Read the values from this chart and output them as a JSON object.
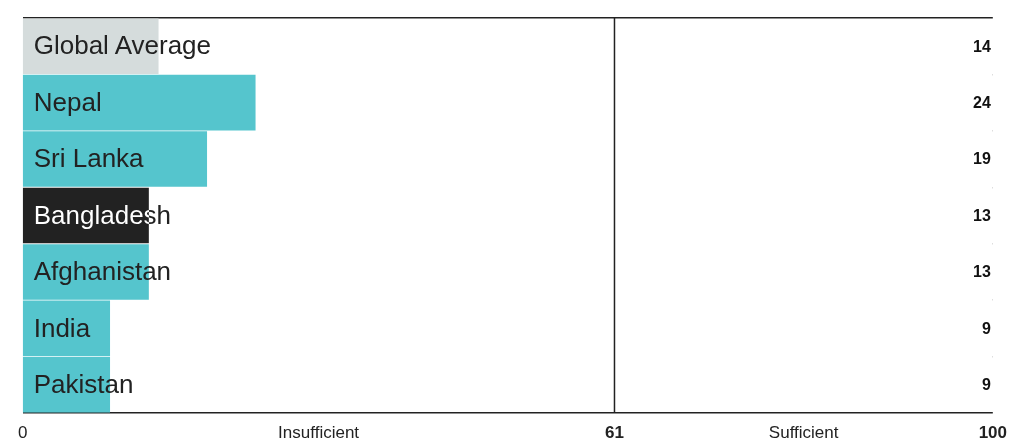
{
  "chart_data": {
    "type": "bar",
    "orientation": "horizontal",
    "categories": [
      "Global Average",
      "Nepal",
      "Sri Lanka",
      "Bangladesh",
      "Afghanistan",
      "India",
      "Pakistan"
    ],
    "values": [
      14,
      24,
      19,
      13,
      13,
      9,
      9
    ],
    "colors": [
      "#d5dcdc",
      "#55c5cd",
      "#55c5cd",
      "#222222",
      "#55c5cd",
      "#55c5cd",
      "#55c5cd"
    ],
    "xlim": [
      0,
      100
    ],
    "xticks": [
      0,
      61,
      100
    ],
    "ref_lines": [
      {
        "axis": "x",
        "value": 61,
        "color": "#222222"
      }
    ],
    "bands": [
      {
        "axis": "x",
        "from": 0,
        "to": 61,
        "label": "Insufficient",
        "color": "#ffffff"
      },
      {
        "axis": "x",
        "from": 61,
        "to": 100,
        "label": "Sufficient",
        "color": "#ffffff"
      }
    ],
    "data_labels": true,
    "grid": "y",
    "legend": false
  }
}
